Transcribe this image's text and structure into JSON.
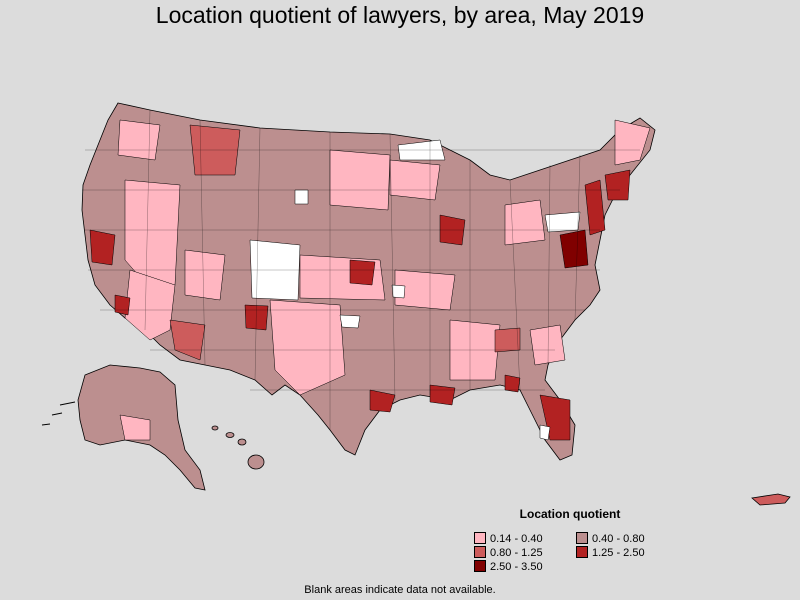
{
  "title": "Location quotient of lawyers, by area, May 2019",
  "legend": {
    "title": "Location quotient",
    "items": [
      {
        "label": "0.14 - 0.40",
        "color": "#ffb6c1"
      },
      {
        "label": "0.40 - 0.80",
        "color": "#bc8f8f"
      },
      {
        "label": "0.80 - 1.25",
        "color": "#cd5c5c"
      },
      {
        "label": "1.25 - 2.50",
        "color": "#b22222"
      },
      {
        "label": "2.50 - 3.50",
        "color": "#800000"
      }
    ]
  },
  "blank_color": "#ffffff",
  "footnote": "Blank areas indicate data not available."
}
